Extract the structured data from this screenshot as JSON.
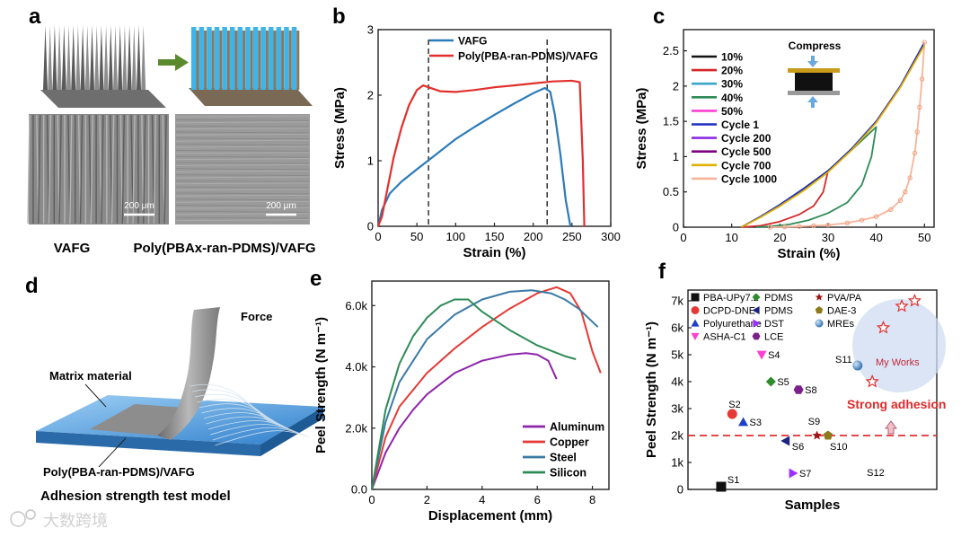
{
  "panels": {
    "a": {
      "label": "a",
      "scale_bar_1": "200 μm",
      "scale_bar_2": "200 μm",
      "caption_left": "VAFG",
      "caption_right": "Poly(PBAx-ran-PDMS)/VAFG"
    },
    "d": {
      "label": "d",
      "force_label": "Force",
      "matrix_label": "Matrix material",
      "film_label": "Poly(PBA-ran-PDMS)/VAFG",
      "caption": "Adhesion strength test model"
    },
    "b_label": "b",
    "c_label": "c",
    "e_label": "e",
    "f_label": "f"
  },
  "watermark": "大数跨境",
  "compress_label": "Compress",
  "chart_data": [
    {
      "id": "b",
      "type": "line",
      "xlabel": "Strain (%)",
      "ylabel": "Stress (MPa)",
      "xlim": [
        0,
        300
      ],
      "ylim": [
        0,
        3
      ],
      "xticks": [
        0,
        50,
        100,
        150,
        200,
        250,
        300
      ],
      "yticks": [
        0,
        1,
        2,
        3
      ],
      "vlines": [
        65,
        218
      ],
      "series": [
        {
          "name": "VAFG",
          "color": "#2b7bb9",
          "x": [
            0,
            5,
            15,
            30,
            50,
            75,
            100,
            125,
            150,
            175,
            200,
            215,
            222,
            228,
            235,
            242,
            248
          ],
          "y": [
            0,
            0.25,
            0.5,
            0.68,
            0.87,
            1.1,
            1.33,
            1.52,
            1.7,
            1.87,
            2.03,
            2.11,
            2.05,
            1.7,
            1.1,
            0.4,
            0
          ]
        },
        {
          "name": "Poly(PBA-ran-PDMS)/VAFG",
          "color": "#e1302c",
          "x": [
            0,
            5,
            10,
            20,
            30,
            40,
            50,
            58,
            65,
            80,
            100,
            125,
            150,
            175,
            200,
            225,
            250,
            260,
            264,
            266
          ],
          "y": [
            0,
            0.15,
            0.45,
            1.05,
            1.5,
            1.85,
            2.08,
            2.15,
            2.12,
            2.06,
            2.05,
            2.08,
            2.12,
            2.15,
            2.18,
            2.21,
            2.22,
            2.2,
            1.0,
            0
          ]
        }
      ]
    },
    {
      "id": "c",
      "type": "line",
      "xlabel": "Strain (%)",
      "ylabel": "Stress (MPa)",
      "xlim": [
        0,
        52
      ],
      "ylim": [
        0,
        2.8
      ],
      "xticks": [
        0,
        10,
        20,
        30,
        40,
        50
      ],
      "yticks": [
        0,
        0.5,
        1.0,
        1.5,
        2.0,
        2.5
      ],
      "legend": [
        {
          "name": "10%",
          "color": "#111111"
        },
        {
          "name": "20%",
          "color": "#d62728"
        },
        {
          "name": "30%",
          "color": "#3aa6c8"
        },
        {
          "name": "40%",
          "color": "#2e8b57"
        },
        {
          "name": "50%",
          "color": "#ff3fd1"
        },
        {
          "name": "Cycle 1",
          "color": "#1f2fbf"
        },
        {
          "name": "Cycle 200",
          "color": "#8a2be2"
        },
        {
          "name": "Cycle 500",
          "color": "#800080"
        },
        {
          "name": "Cycle 700",
          "color": "#e0b000"
        },
        {
          "name": "Cycle 1000",
          "color": "#f5b49a"
        }
      ],
      "curves": [
        {
          "color": "#d62728",
          "x": [
            12,
            20,
            25,
            30,
            29,
            27,
            24,
            20,
            16,
            12
          ],
          "y": [
            0,
            0.3,
            0.55,
            0.8,
            0.5,
            0.3,
            0.18,
            0.08,
            0.02,
            0
          ]
        },
        {
          "color": "#2e8b57",
          "x": [
            12,
            20,
            25,
            30,
            35,
            40,
            39,
            37,
            34,
            30,
            26,
            22,
            18,
            15
          ],
          "y": [
            0,
            0.3,
            0.55,
            0.8,
            1.1,
            1.42,
            1.0,
            0.6,
            0.35,
            0.2,
            0.1,
            0.04,
            0.01,
            0
          ]
        },
        {
          "color": "#1f2fbf",
          "x": [
            12,
            16,
            20,
            25,
            30,
            35,
            40,
            45,
            50
          ],
          "y": [
            0,
            0.15,
            0.32,
            0.55,
            0.8,
            1.12,
            1.5,
            2.0,
            2.62
          ]
        },
        {
          "color": "#f5b49a",
          "x": [
            50,
            49.5,
            49,
            48.5,
            48,
            47,
            46,
            45,
            43,
            40,
            37,
            34,
            30,
            27,
            24,
            21,
            18
          ],
          "y": [
            2.62,
            2.1,
            1.7,
            1.35,
            1.05,
            0.7,
            0.5,
            0.38,
            0.25,
            0.15,
            0.1,
            0.06,
            0.03,
            0.02,
            0.01,
            0.005,
            0
          ]
        },
        {
          "color": "#e0b000",
          "x": [
            12,
            16,
            20,
            25,
            30,
            35,
            40,
            45,
            50
          ],
          "y": [
            0,
            0.14,
            0.3,
            0.52,
            0.78,
            1.1,
            1.48,
            1.98,
            2.58
          ]
        }
      ]
    },
    {
      "id": "e",
      "type": "line",
      "xlabel": "Displacement (mm)",
      "ylabel": "Peel Strength (N m⁻¹)",
      "xlim": [
        0,
        8.6
      ],
      "ylim": [
        0,
        6800
      ],
      "xticks": [
        0,
        2,
        4,
        6,
        8
      ],
      "yticks": [
        0,
        2000,
        4000,
        6000
      ],
      "ytick_labels": [
        "0.0",
        "2.0k",
        "4.0k",
        "6.0k"
      ],
      "series": [
        {
          "name": "Aluminum",
          "color": "#8e24aa",
          "x": [
            0,
            0.5,
            1,
            1.5,
            2,
            3,
            4,
            5,
            5.6,
            6,
            6.4,
            6.7
          ],
          "y": [
            0,
            1200,
            2000,
            2600,
            3100,
            3800,
            4200,
            4400,
            4450,
            4400,
            4200,
            3600
          ]
        },
        {
          "name": "Copper",
          "color": "#e53935",
          "x": [
            0,
            0.5,
            1,
            2,
            3,
            4,
            5,
            6,
            6.7,
            7.2,
            7.6,
            8,
            8.3
          ],
          "y": [
            0,
            1700,
            2700,
            3800,
            4600,
            5300,
            5900,
            6400,
            6600,
            6400,
            5800,
            4500,
            3800
          ]
        },
        {
          "name": "Steel",
          "color": "#3a7aa5",
          "x": [
            0,
            0.5,
            1,
            2,
            3,
            4,
            5,
            5.8,
            6.5,
            7,
            7.5,
            8.2
          ],
          "y": [
            0,
            2200,
            3500,
            4900,
            5700,
            6200,
            6450,
            6500,
            6400,
            6200,
            5900,
            5300
          ]
        },
        {
          "name": "Silicon",
          "color": "#2e8b57",
          "x": [
            0,
            0.5,
            1,
            1.5,
            2,
            2.5,
            3,
            3.5,
            4,
            5,
            6,
            7,
            7.4
          ],
          "y": [
            0,
            2600,
            4100,
            5000,
            5600,
            6000,
            6200,
            6200,
            5800,
            5200,
            4700,
            4350,
            4250
          ]
        }
      ]
    },
    {
      "id": "f",
      "type": "scatter",
      "xlabel": "Samples",
      "ylabel": "Peel Strength (N m⁻¹)",
      "xlim": [
        0,
        13.5
      ],
      "ylim": [
        0,
        7400
      ],
      "yticks": [
        0,
        1000,
        2000,
        3000,
        4000,
        5000,
        6000,
        7000
      ],
      "ytick_labels": [
        "0",
        "1k",
        "2k",
        "3k",
        "4k",
        "5k",
        "6k",
        "7k"
      ],
      "reference_line": 2000,
      "annotation": "Strong adhesion",
      "highlight_label": "My Works",
      "legend": [
        {
          "name": "PBA-UPy7.2",
          "color": "#111111",
          "marker": "square"
        },
        {
          "name": "PDMS",
          "color": "#2e8b2e",
          "marker": "diamond"
        },
        {
          "name": "PVA/PA",
          "color": "#a01515",
          "marker": "star"
        },
        {
          "name": "DCPD-DNE",
          "color": "#e53935",
          "marker": "circle"
        },
        {
          "name": "PDMS",
          "color": "#1a237e",
          "marker": "tri-left"
        },
        {
          "name": "DAE-3",
          "color": "#8d7a1a",
          "marker": "pentagon"
        },
        {
          "name": "Polyurethane",
          "color": "#1e40c8",
          "marker": "triangle"
        },
        {
          "name": "DST",
          "color": "#9b30ff",
          "marker": "tri-right"
        },
        {
          "name": "MREs",
          "color": "#3878b4",
          "marker": "sphere"
        },
        {
          "name": "ASHA-C1",
          "color": "#ff3fd1",
          "marker": "tri-down"
        },
        {
          "name": "LCE",
          "color": "#7b1f8a",
          "marker": "hexagon"
        }
      ],
      "points": [
        {
          "label": "S1",
          "x": 1.8,
          "y": 100,
          "marker": "square",
          "color": "#111111"
        },
        {
          "label": "S2",
          "x": 2.4,
          "y": 2800,
          "marker": "circle",
          "color": "#e53935"
        },
        {
          "label": "S3",
          "x": 3,
          "y": 2500,
          "marker": "triangle",
          "color": "#1e40c8"
        },
        {
          "label": "S4",
          "x": 4,
          "y": 5000,
          "marker": "tri-down",
          "color": "#ff3fd1"
        },
        {
          "label": "S5",
          "x": 4.5,
          "y": 4000,
          "marker": "diamond",
          "color": "#2e8b2e"
        },
        {
          "label": "S6",
          "x": 5.3,
          "y": 1800,
          "marker": "tri-left",
          "color": "#1a237e"
        },
        {
          "label": "S7",
          "x": 5.7,
          "y": 600,
          "marker": "tri-right",
          "color": "#9b30ff"
        },
        {
          "label": "S8",
          "x": 6,
          "y": 3700,
          "marker": "hexagon",
          "color": "#7b1f8a"
        },
        {
          "label": "S9",
          "x": 7,
          "y": 2000,
          "marker": "star",
          "color": "#a01515"
        },
        {
          "label": "S10",
          "x": 7.6,
          "y": 2000,
          "marker": "pentagon",
          "color": "#8d7a1a"
        },
        {
          "label": "S11",
          "x": 9.2,
          "y": 4600,
          "marker": "sphere",
          "color": "#3878b4"
        },
        {
          "label": "S12",
          "x": 10,
          "y": 0,
          "marker": "none",
          "color": "#111111"
        }
      ],
      "my_works": {
        "x": [
          10,
          10.6,
          11.6,
          12.3
        ],
        "y": [
          4000,
          6000,
          6800,
          7000
        ]
      }
    }
  ]
}
